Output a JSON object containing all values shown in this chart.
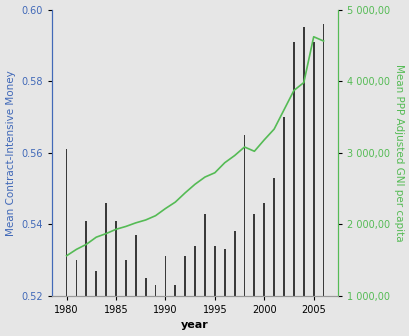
{
  "years": [
    1980,
    1981,
    1982,
    1983,
    1984,
    1985,
    1986,
    1987,
    1988,
    1989,
    1990,
    1991,
    1992,
    1993,
    1994,
    1995,
    1996,
    1997,
    1998,
    1999,
    2000,
    2001,
    2002,
    2003,
    2004,
    2005,
    2006
  ],
  "bar_values": [
    0.561,
    0.53,
    0.541,
    0.527,
    0.546,
    0.541,
    0.53,
    0.537,
    0.525,
    0.523,
    0.531,
    0.523,
    0.531,
    0.534,
    0.543,
    0.534,
    0.533,
    0.538,
    0.565,
    0.543,
    0.546,
    0.553,
    0.57,
    0.591,
    0.595,
    0.591,
    0.596
  ],
  "line_values": [
    1560,
    1650,
    1720,
    1820,
    1870,
    1930,
    1970,
    2020,
    2060,
    2120,
    2220,
    2310,
    2440,
    2560,
    2660,
    2720,
    2860,
    2960,
    3080,
    3020,
    3180,
    3330,
    3600,
    3870,
    3980,
    4620,
    4560
  ],
  "ylim_left": [
    0.52,
    0.6
  ],
  "ylim_right": [
    1000,
    5000
  ],
  "yticks_left": [
    0.52,
    0.54,
    0.56,
    0.58,
    0.6
  ],
  "yticks_right": [
    1000,
    2000,
    3000,
    4000,
    5000
  ],
  "ytick_right_labels": [
    "1 000,00",
    "2 000,00",
    "3 000,00",
    "4 000,00",
    "5 000,00"
  ],
  "xticks": [
    1980,
    1985,
    1990,
    1995,
    2000,
    2005
  ],
  "xlabel": "year",
  "ylabel_left": "Mean Contract-Intensive Money",
  "ylabel_right": "Mean PPP Adjusted GNI per capita",
  "bar_color": "#3a3a3a",
  "line_color": "#55bb55",
  "left_axis_color": "#4169b8",
  "right_axis_color": "#55bb55",
  "background_color": "#e6e6e6",
  "bar_width": 0.18,
  "bar_bottom": 0.52,
  "xlim": [
    1978.5,
    2007.5
  ]
}
